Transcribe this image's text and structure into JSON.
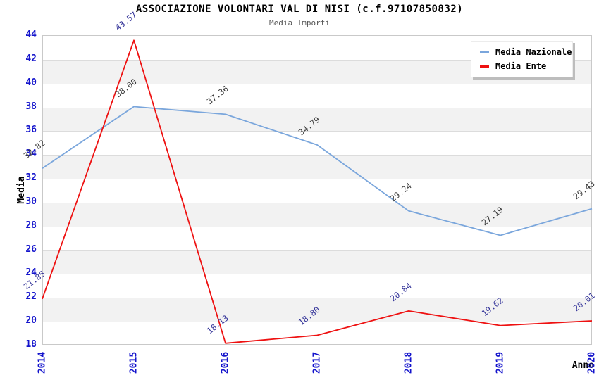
{
  "header": {
    "title": "ASSOCIAZIONE VOLONTARI VAL DI NISI (c.f.97107850832)",
    "subtitle": "Media Importi"
  },
  "chart_data": {
    "type": "line",
    "title": "ASSOCIAZIONE VOLONTARI VAL DI NISI (c.f.97107850832)",
    "subtitle": "Media Importi",
    "x": [
      "2014",
      "2015",
      "2016",
      "2017",
      "2018",
      "2019",
      "2020"
    ],
    "xlabel": "Anno",
    "ylabel": "Media",
    "ylim": [
      18,
      44
    ],
    "ytick_step": 2,
    "grid": true,
    "alternating_bands": true,
    "legend_position": "top-right",
    "series": [
      {
        "name": "Media Nazionale",
        "color": "#7aa6dc",
        "label_color": "#3a3a3a",
        "values": [
          32.82,
          38.0,
          37.36,
          34.79,
          29.24,
          27.19,
          29.43
        ]
      },
      {
        "name": "Media Ente",
        "color": "#ee1111",
        "label_color": "#333399",
        "values": [
          21.85,
          43.57,
          18.13,
          18.8,
          20.84,
          19.62,
          20.01
        ]
      }
    ]
  },
  "colors": {
    "tick_label": "#1414cc",
    "band": "#f2f2f2",
    "gridline": "#dcdcdc",
    "plot_border": "#c9c9c9",
    "title": "#000000",
    "subtitle": "#555555"
  }
}
